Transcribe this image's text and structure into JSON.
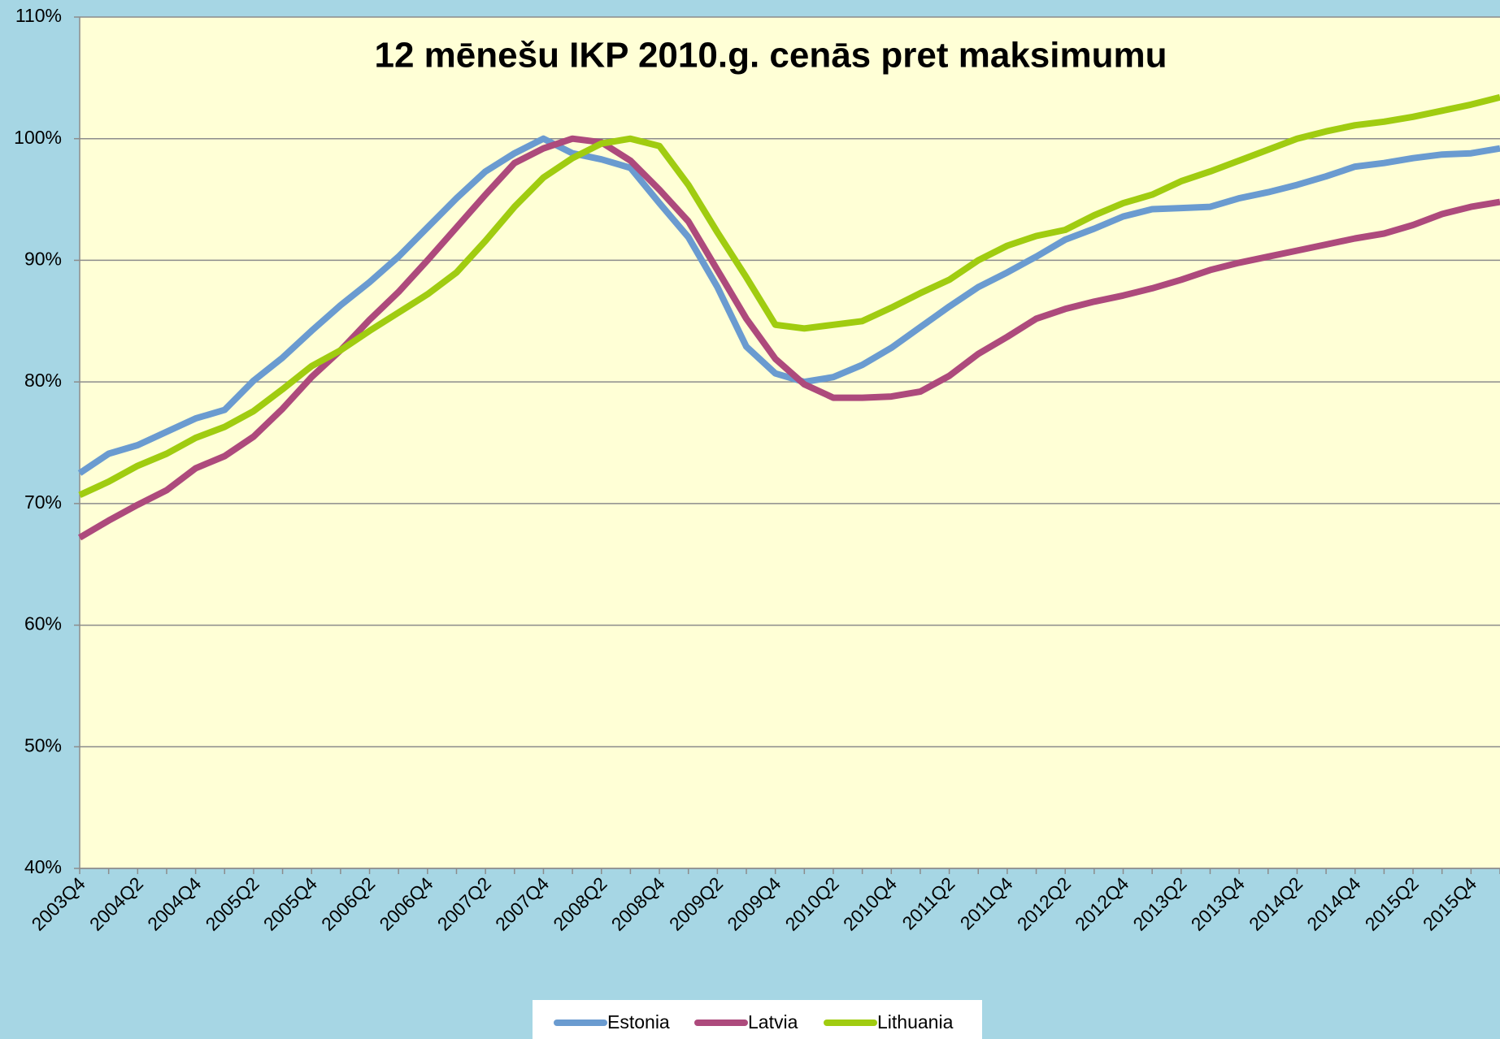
{
  "chart_data": {
    "type": "line",
    "title": "12 mēnešu IKP 2010.g. cenās pret maksimumu",
    "categories": [
      "2003Q4",
      null,
      "2004Q2",
      null,
      "2004Q4",
      null,
      "2005Q2",
      null,
      "2005Q4",
      null,
      "2006Q2",
      null,
      "2006Q4",
      null,
      "2007Q2",
      null,
      "2007Q4",
      null,
      "2008Q2",
      null,
      "2008Q4",
      null,
      "2009Q2",
      null,
      "2009Q4",
      null,
      "2010Q2",
      null,
      "2010Q4",
      null,
      "2011Q2",
      null,
      "2011Q4",
      null,
      "2012Q2",
      null,
      "2012Q4",
      null,
      "2013Q2",
      null,
      "2013Q4",
      null,
      "2014Q2",
      null,
      "2014Q4",
      null,
      "2015Q2",
      null,
      "2015Q4",
      null
    ],
    "series": [
      {
        "name": "Estonia",
        "color": "#6a9bd0",
        "values": [
          72.5,
          74.1,
          74.8,
          75.9,
          77.0,
          77.7,
          80.1,
          82.0,
          84.2,
          86.3,
          88.2,
          90.3,
          92.7,
          95.1,
          97.3,
          98.8,
          100,
          98.8,
          98.3,
          97.6,
          94.7,
          91.9,
          87.8,
          82.9,
          80.7,
          80.0,
          80.4,
          81.4,
          82.8,
          84.5,
          86.2,
          87.8,
          89.0,
          90.3,
          91.7,
          92.6,
          93.6,
          94.2,
          94.3,
          94.4,
          95.1,
          95.6,
          96.2,
          96.9,
          97.7,
          98.0,
          98.4,
          98.7,
          98.8,
          99.2
        ]
      },
      {
        "name": "Latvia",
        "color": "#ad4a7c",
        "values": [
          67.2,
          68.6,
          69.9,
          71.1,
          72.9,
          73.9,
          75.5,
          77.8,
          80.4,
          82.6,
          85.1,
          87.4,
          90.0,
          92.7,
          95.4,
          98.0,
          99.2,
          100,
          99.7,
          98.2,
          95.8,
          93.2,
          89.2,
          85.2,
          81.9,
          79.8,
          78.7,
          78.7,
          78.8,
          79.2,
          80.5,
          82.3,
          83.7,
          85.2,
          86.0,
          86.6,
          87.1,
          87.7,
          88.4,
          89.2,
          89.8,
          90.3,
          90.8,
          91.3,
          91.8,
          92.2,
          92.9,
          93.8,
          94.4,
          94.8
        ]
      },
      {
        "name": "Lithuania",
        "color": "#a0cc10",
        "values": [
          70.7,
          71.8,
          73.1,
          74.1,
          75.4,
          76.3,
          77.6,
          79.4,
          81.3,
          82.6,
          84.2,
          85.7,
          87.2,
          89.0,
          91.6,
          94.4,
          96.8,
          98.4,
          99.6,
          100,
          99.4,
          96.2,
          92.3,
          88.6,
          84.7,
          84.4,
          84.7,
          85.0,
          86.1,
          87.3,
          88.4,
          90.0,
          91.2,
          92.0,
          92.5,
          93.7,
          94.7,
          95.4,
          96.5,
          97.3,
          98.2,
          99.1,
          100.0,
          100.6,
          101.1,
          101.4,
          101.8,
          102.3,
          102.8,
          103.4
        ]
      }
    ],
    "ylim": [
      40,
      110
    ],
    "yticks": [
      {
        "value": 40,
        "label": "40%"
      },
      {
        "value": 50,
        "label": "50%"
      },
      {
        "value": 60,
        "label": "60%"
      },
      {
        "value": 70,
        "label": "70%"
      },
      {
        "value": 80,
        "label": "80%"
      },
      {
        "value": 90,
        "label": "90%"
      },
      {
        "value": 100,
        "label": "100%"
      },
      {
        "value": 110,
        "label": "110%"
      }
    ],
    "grid": true,
    "legend": "bottom"
  }
}
